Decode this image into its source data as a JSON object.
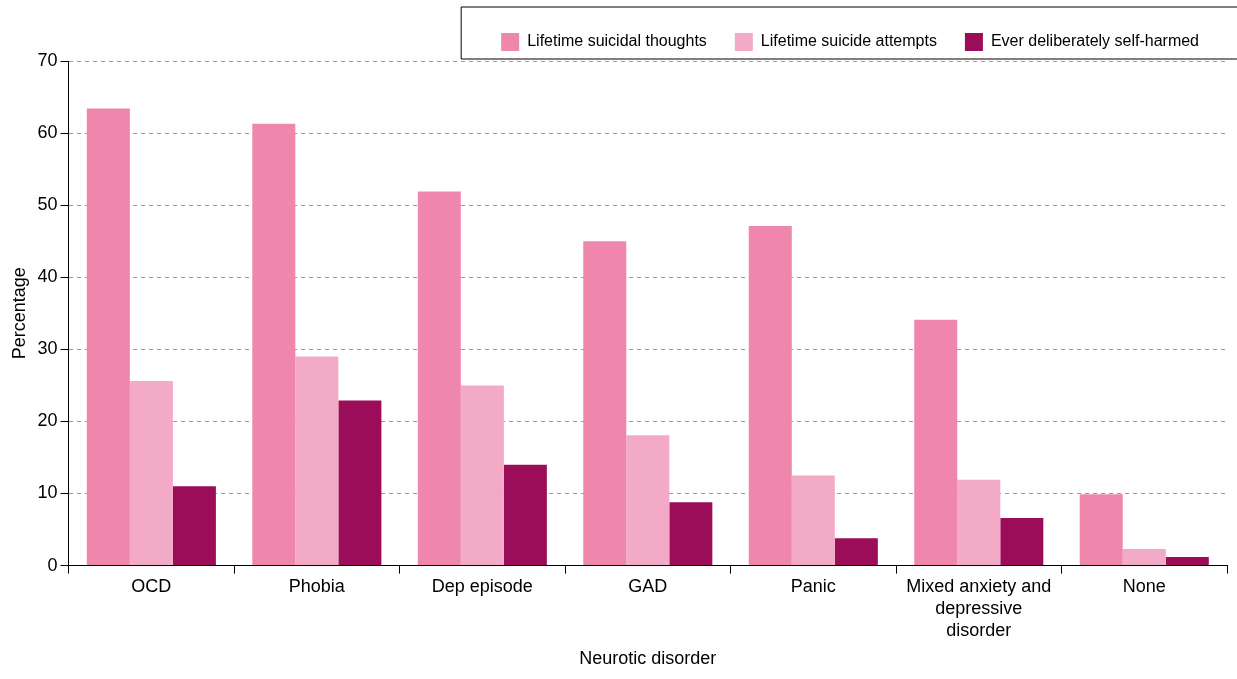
{
  "chart_data": {
    "type": "bar",
    "xlabel": "Neurotic disorder",
    "ylabel": "Percentage",
    "categories": [
      "OCD",
      "Phobia",
      "Dep episode",
      "GAD",
      "Panic",
      "Mixed anxiety and depressive disorder",
      "None"
    ],
    "series": [
      {
        "name": "Lifetime suicidal thoughts",
        "color": "#ef87ad",
        "values": [
          63.4,
          61.3,
          51.9,
          45.0,
          47.1,
          34.1,
          9.9
        ]
      },
      {
        "name": "Lifetime suicide attempts",
        "color": "#f3aac6",
        "values": [
          25.6,
          29.0,
          25.0,
          18.1,
          12.5,
          11.9,
          2.3
        ]
      },
      {
        "name": "Ever deliberately self-harmed",
        "color": "#9b0d59",
        "values": [
          11.0,
          22.9,
          14.0,
          8.8,
          3.8,
          6.6,
          1.2
        ]
      }
    ],
    "ylim": [
      0,
      70
    ],
    "yticks": [
      0,
      10,
      20,
      30,
      40,
      50,
      60,
      70
    ],
    "grid": "y",
    "legend": "top"
  }
}
